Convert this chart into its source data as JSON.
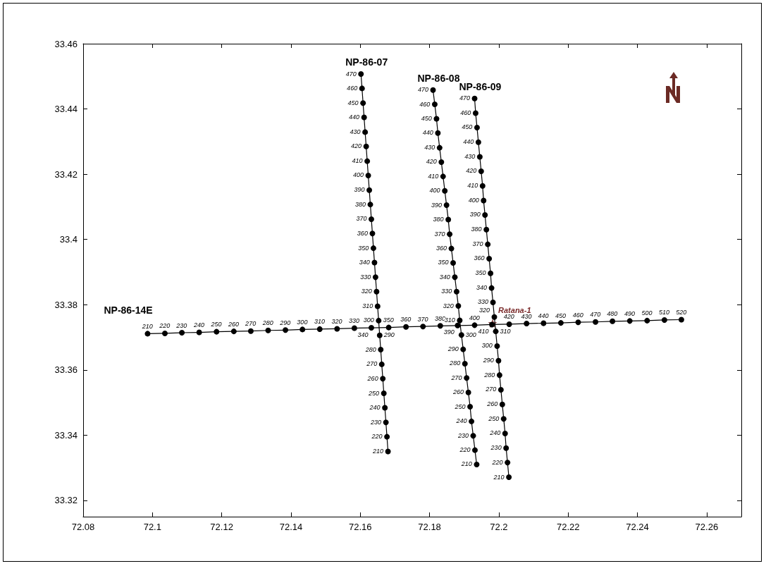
{
  "chart_data": {
    "type": "line",
    "marker": "circle",
    "line_style": "solid",
    "grid": false,
    "xlim": [
      72.08,
      72.27
    ],
    "ylim": [
      33.315,
      33.46
    ],
    "xticks": [
      72.08,
      72.1,
      72.12,
      72.14,
      72.16,
      72.18,
      72.2,
      72.22,
      72.24,
      72.26
    ],
    "yticks": [
      33.32,
      33.34,
      33.36,
      33.38,
      33.4,
      33.42,
      33.44,
      33.46
    ],
    "annotations": [
      {
        "text": "Ratana-1",
        "x": 72.1982,
        "y": 33.3743
      },
      {
        "text": "210",
        "x": 72.0986,
        "y": 33.3711
      },
      {
        "text": "220",
        "x": 72.1036,
        "y": 33.3712
      },
      {
        "text": "230",
        "x": 72.1085,
        "y": 33.3714
      },
      {
        "text": "240",
        "x": 72.1135,
        "y": 33.3715
      },
      {
        "text": "250",
        "x": 72.1185,
        "y": 33.3717
      },
      {
        "text": "260",
        "x": 72.1235,
        "y": 33.3718
      },
      {
        "text": "270",
        "x": 72.1284,
        "y": 33.3719
      },
      {
        "text": "280",
        "x": 72.1334,
        "y": 33.3721
      },
      {
        "text": "290",
        "x": 72.1384,
        "y": 33.3722
      },
      {
        "text": "300",
        "x": 72.1433,
        "y": 33.3724
      },
      {
        "text": "310",
        "x": 72.1483,
        "y": 33.3725
      },
      {
        "text": "320",
        "x": 72.1533,
        "y": 33.3726
      },
      {
        "text": "330",
        "x": 72.1583,
        "y": 33.3728
      },
      {
        "text": "340",
        "x": 72.1632,
        "y": 33.3729
      },
      {
        "text": "350",
        "x": 72.1682,
        "y": 33.373
      },
      {
        "text": "360",
        "x": 72.1732,
        "y": 33.3732
      },
      {
        "text": "370",
        "x": 72.1781,
        "y": 33.3733
      },
      {
        "text": "380",
        "x": 72.1831,
        "y": 33.3735
      },
      {
        "text": "390",
        "x": 72.1881,
        "y": 33.3736
      },
      {
        "text": "400",
        "x": 72.193,
        "y": 33.3737
      },
      {
        "text": "410",
        "x": 72.198,
        "y": 33.3739
      },
      {
        "text": "420",
        "x": 72.203,
        "y": 33.374
      },
      {
        "text": "430",
        "x": 72.208,
        "y": 33.3742
      },
      {
        "text": "440",
        "x": 72.2129,
        "y": 33.3743
      },
      {
        "text": "450",
        "x": 72.2179,
        "y": 33.3744
      },
      {
        "text": "460",
        "x": 72.2229,
        "y": 33.3746
      },
      {
        "text": "470",
        "x": 72.2279,
        "y": 33.3747
      },
      {
        "text": "480",
        "x": 72.2328,
        "y": 33.3749
      },
      {
        "text": "490",
        "x": 72.2378,
        "y": 33.375
      },
      {
        "text": "500",
        "x": 72.2428,
        "y": 33.3751
      },
      {
        "text": "510",
        "x": 72.2478,
        "y": 33.3753
      },
      {
        "text": "520",
        "x": 72.2527,
        "y": 33.3754
      },
      {
        "text": "210",
        "x": 72.168,
        "y": 33.335
      },
      {
        "text": "220",
        "x": 72.1677,
        "y": 33.3395
      },
      {
        "text": "230",
        "x": 72.1674,
        "y": 33.3439
      },
      {
        "text": "240",
        "x": 72.1671,
        "y": 33.3484
      },
      {
        "text": "250",
        "x": 72.1668,
        "y": 33.3528
      },
      {
        "text": "260",
        "x": 72.1665,
        "y": 33.3573
      },
      {
        "text": "270",
        "x": 72.1662,
        "y": 33.3617
      },
      {
        "text": "280",
        "x": 72.1659,
        "y": 33.3662
      },
      {
        "text": "290",
        "x": 72.1656,
        "y": 33.3706
      },
      {
        "text": "300",
        "x": 72.1653,
        "y": 33.3751
      },
      {
        "text": "310",
        "x": 72.165,
        "y": 33.3795
      },
      {
        "text": "320",
        "x": 72.1647,
        "y": 33.384
      },
      {
        "text": "330",
        "x": 72.1644,
        "y": 33.3884
      },
      {
        "text": "340",
        "x": 72.1641,
        "y": 33.3929
      },
      {
        "text": "350",
        "x": 72.1638,
        "y": 33.3973
      },
      {
        "text": "360",
        "x": 72.1635,
        "y": 33.4018
      },
      {
        "text": "370",
        "x": 72.1632,
        "y": 33.4062
      },
      {
        "text": "380",
        "x": 72.1629,
        "y": 33.4107
      },
      {
        "text": "390",
        "x": 72.1626,
        "y": 33.4151
      },
      {
        "text": "400",
        "x": 72.1623,
        "y": 33.4196
      },
      {
        "text": "410",
        "x": 72.162,
        "y": 33.424
      },
      {
        "text": "420",
        "x": 72.1617,
        "y": 33.4285
      },
      {
        "text": "430",
        "x": 72.1614,
        "y": 33.4329
      },
      {
        "text": "440",
        "x": 72.1611,
        "y": 33.4374
      },
      {
        "text": "450",
        "x": 72.1608,
        "y": 33.4418
      },
      {
        "text": "460",
        "x": 72.1605,
        "y": 33.4463
      },
      {
        "text": "470",
        "x": 72.1602,
        "y": 33.4507
      },
      {
        "text": "210",
        "x": 72.1936,
        "y": 33.331
      },
      {
        "text": "220",
        "x": 72.1931,
        "y": 33.3354
      },
      {
        "text": "230",
        "x": 72.1926,
        "y": 33.3398
      },
      {
        "text": "240",
        "x": 72.1921,
        "y": 33.3442
      },
      {
        "text": "250",
        "x": 72.1917,
        "y": 33.3487
      },
      {
        "text": "260",
        "x": 72.1912,
        "y": 33.3531
      },
      {
        "text": "270",
        "x": 72.1907,
        "y": 33.3575
      },
      {
        "text": "280",
        "x": 72.1902,
        "y": 33.3619
      },
      {
        "text": "290",
        "x": 72.1897,
        "y": 33.3663
      },
      {
        "text": "300",
        "x": 72.1892,
        "y": 33.3707
      },
      {
        "text": "310",
        "x": 72.1887,
        "y": 33.3752
      },
      {
        "text": "320",
        "x": 72.1883,
        "y": 33.3796
      },
      {
        "text": "330",
        "x": 72.1878,
        "y": 33.384
      },
      {
        "text": "340",
        "x": 72.1873,
        "y": 33.3884
      },
      {
        "text": "350",
        "x": 72.1868,
        "y": 33.3928
      },
      {
        "text": "360",
        "x": 72.1863,
        "y": 33.3972
      },
      {
        "text": "370",
        "x": 72.1858,
        "y": 33.4016
      },
      {
        "text": "380",
        "x": 72.1854,
        "y": 33.4061
      },
      {
        "text": "390",
        "x": 72.1849,
        "y": 33.4105
      },
      {
        "text": "400",
        "x": 72.1844,
        "y": 33.4149
      },
      {
        "text": "410",
        "x": 72.1839,
        "y": 33.4193
      },
      {
        "text": "420",
        "x": 72.1834,
        "y": 33.4237
      },
      {
        "text": "430",
        "x": 72.1829,
        "y": 33.4281
      },
      {
        "text": "440",
        "x": 72.1824,
        "y": 33.4326
      },
      {
        "text": "450",
        "x": 72.182,
        "y": 33.437
      },
      {
        "text": "460",
        "x": 72.1815,
        "y": 33.4414
      },
      {
        "text": "470",
        "x": 72.181,
        "y": 33.4458
      },
      {
        "text": "210",
        "x": 72.2029,
        "y": 33.3271
      },
      {
        "text": "220",
        "x": 72.2025,
        "y": 33.3316
      },
      {
        "text": "230",
        "x": 72.2021,
        "y": 33.336
      },
      {
        "text": "240",
        "x": 72.2018,
        "y": 33.3405
      },
      {
        "text": "250",
        "x": 72.2014,
        "y": 33.345
      },
      {
        "text": "260",
        "x": 72.201,
        "y": 33.3494
      },
      {
        "text": "270",
        "x": 72.2006,
        "y": 33.3539
      },
      {
        "text": "280",
        "x": 72.2002,
        "y": 33.3584
      },
      {
        "text": "290",
        "x": 72.1999,
        "y": 33.3628
      },
      {
        "text": "300",
        "x": 72.1995,
        "y": 33.3673
      },
      {
        "text": "310",
        "x": 72.1991,
        "y": 33.3718
      },
      {
        "text": "320",
        "x": 72.1987,
        "y": 33.3762
      },
      {
        "text": "330",
        "x": 72.1983,
        "y": 33.3807
      },
      {
        "text": "340",
        "x": 72.1979,
        "y": 33.3851
      },
      {
        "text": "350",
        "x": 72.1976,
        "y": 33.3896
      },
      {
        "text": "360",
        "x": 72.1972,
        "y": 33.3941
      },
      {
        "text": "370",
        "x": 72.1968,
        "y": 33.3985
      },
      {
        "text": "380",
        "x": 72.1964,
        "y": 33.403
      },
      {
        "text": "390",
        "x": 72.196,
        "y": 33.4075
      },
      {
        "text": "400",
        "x": 72.1956,
        "y": 33.4119
      },
      {
        "text": "410",
        "x": 72.1953,
        "y": 33.4164
      },
      {
        "text": "420",
        "x": 72.1949,
        "y": 33.4209
      },
      {
        "text": "430",
        "x": 72.1945,
        "y": 33.4253
      },
      {
        "text": "440",
        "x": 72.1941,
        "y": 33.4298
      },
      {
        "text": "450",
        "x": 72.1937,
        "y": 33.4343
      },
      {
        "text": "460",
        "x": 72.1933,
        "y": 33.4387
      },
      {
        "text": "470",
        "x": 72.193,
        "y": 33.4432
      }
    ],
    "series": [
      {
        "name": "NP-86-07",
        "color": "#000000",
        "x": [
          72.168,
          72.1677,
          72.1674,
          72.1671,
          72.1668,
          72.1665,
          72.1662,
          72.1659,
          72.1656,
          72.1653,
          72.165,
          72.1647,
          72.1644,
          72.1641,
          72.1638,
          72.1635,
          72.1632,
          72.1629,
          72.1626,
          72.1623,
          72.162,
          72.1617,
          72.1614,
          72.1611,
          72.1608,
          72.1605,
          72.1602
        ],
        "values": [
          33.335,
          33.3395,
          33.3439,
          33.3484,
          33.3528,
          33.3573,
          33.3617,
          33.3662,
          33.3706,
          33.3751,
          33.3795,
          33.384,
          33.3884,
          33.3929,
          33.3973,
          33.4018,
          33.4062,
          33.4107,
          33.4151,
          33.4196,
          33.424,
          33.4285,
          33.4329,
          33.4374,
          33.4418,
          33.4463,
          33.4507
        ]
      },
      {
        "name": "NP-86-08",
        "color": "#000000",
        "x": [
          72.1936,
          72.1931,
          72.1926,
          72.1921,
          72.1917,
          72.1912,
          72.1907,
          72.1902,
          72.1897,
          72.1892,
          72.1887,
          72.1883,
          72.1878,
          72.1873,
          72.1868,
          72.1863,
          72.1858,
          72.1854,
          72.1849,
          72.1844,
          72.1839,
          72.1834,
          72.1829,
          72.1824,
          72.182,
          72.1815,
          72.181
        ],
        "values": [
          33.331,
          33.3354,
          33.3398,
          33.3442,
          33.3487,
          33.3531,
          33.3575,
          33.3619,
          33.3663,
          33.3707,
          33.3752,
          33.3796,
          33.384,
          33.3884,
          33.3928,
          33.3972,
          33.4016,
          33.4061,
          33.4105,
          33.4149,
          33.4193,
          33.4237,
          33.4281,
          33.4326,
          33.437,
          33.4414,
          33.4458
        ]
      },
      {
        "name": "NP-86-09",
        "color": "#000000",
        "x": [
          72.2029,
          72.2025,
          72.2021,
          72.2018,
          72.2014,
          72.201,
          72.2006,
          72.2002,
          72.1999,
          72.1995,
          72.1991,
          72.1987,
          72.1983,
          72.1979,
          72.1976,
          72.1972,
          72.1968,
          72.1964,
          72.196,
          72.1956,
          72.1953,
          72.1949,
          72.1945,
          72.1941,
          72.1937,
          72.1933,
          72.193
        ],
        "values": [
          33.3271,
          33.3316,
          33.336,
          33.3405,
          33.345,
          33.3494,
          33.3539,
          33.3584,
          33.3628,
          33.3673,
          33.3718,
          33.3762,
          33.3807,
          33.3851,
          33.3896,
          33.3941,
          33.3985,
          33.403,
          33.4075,
          33.4119,
          33.4164,
          33.4209,
          33.4253,
          33.4298,
          33.4343,
          33.4387,
          33.4432
        ]
      },
      {
        "name": "NP-86-14E",
        "color": "#000000",
        "x": [
          72.0986,
          72.1036,
          72.1085,
          72.1135,
          72.1185,
          72.1235,
          72.1284,
          72.1334,
          72.1384,
          72.1433,
          72.1483,
          72.1533,
          72.1583,
          72.1632,
          72.1682,
          72.1732,
          72.1781,
          72.1831,
          72.1881,
          72.193,
          72.198,
          72.203,
          72.208,
          72.2129,
          72.2179,
          72.2229,
          72.2279,
          72.2328,
          72.2378,
          72.2428,
          72.2478,
          72.2527
        ],
        "values": [
          33.3711,
          33.3712,
          33.3714,
          33.3715,
          33.3717,
          33.3718,
          33.3719,
          33.3721,
          33.3722,
          33.3724,
          33.3725,
          33.3726,
          33.3728,
          33.3729,
          33.373,
          33.3732,
          33.3733,
          33.3735,
          33.3736,
          33.3737,
          33.3739,
          33.374,
          33.3742,
          33.3743,
          33.3744,
          33.3746,
          33.3747,
          33.3749,
          33.375,
          33.3751,
          33.3753,
          33.3754
        ]
      }
    ]
  }
}
